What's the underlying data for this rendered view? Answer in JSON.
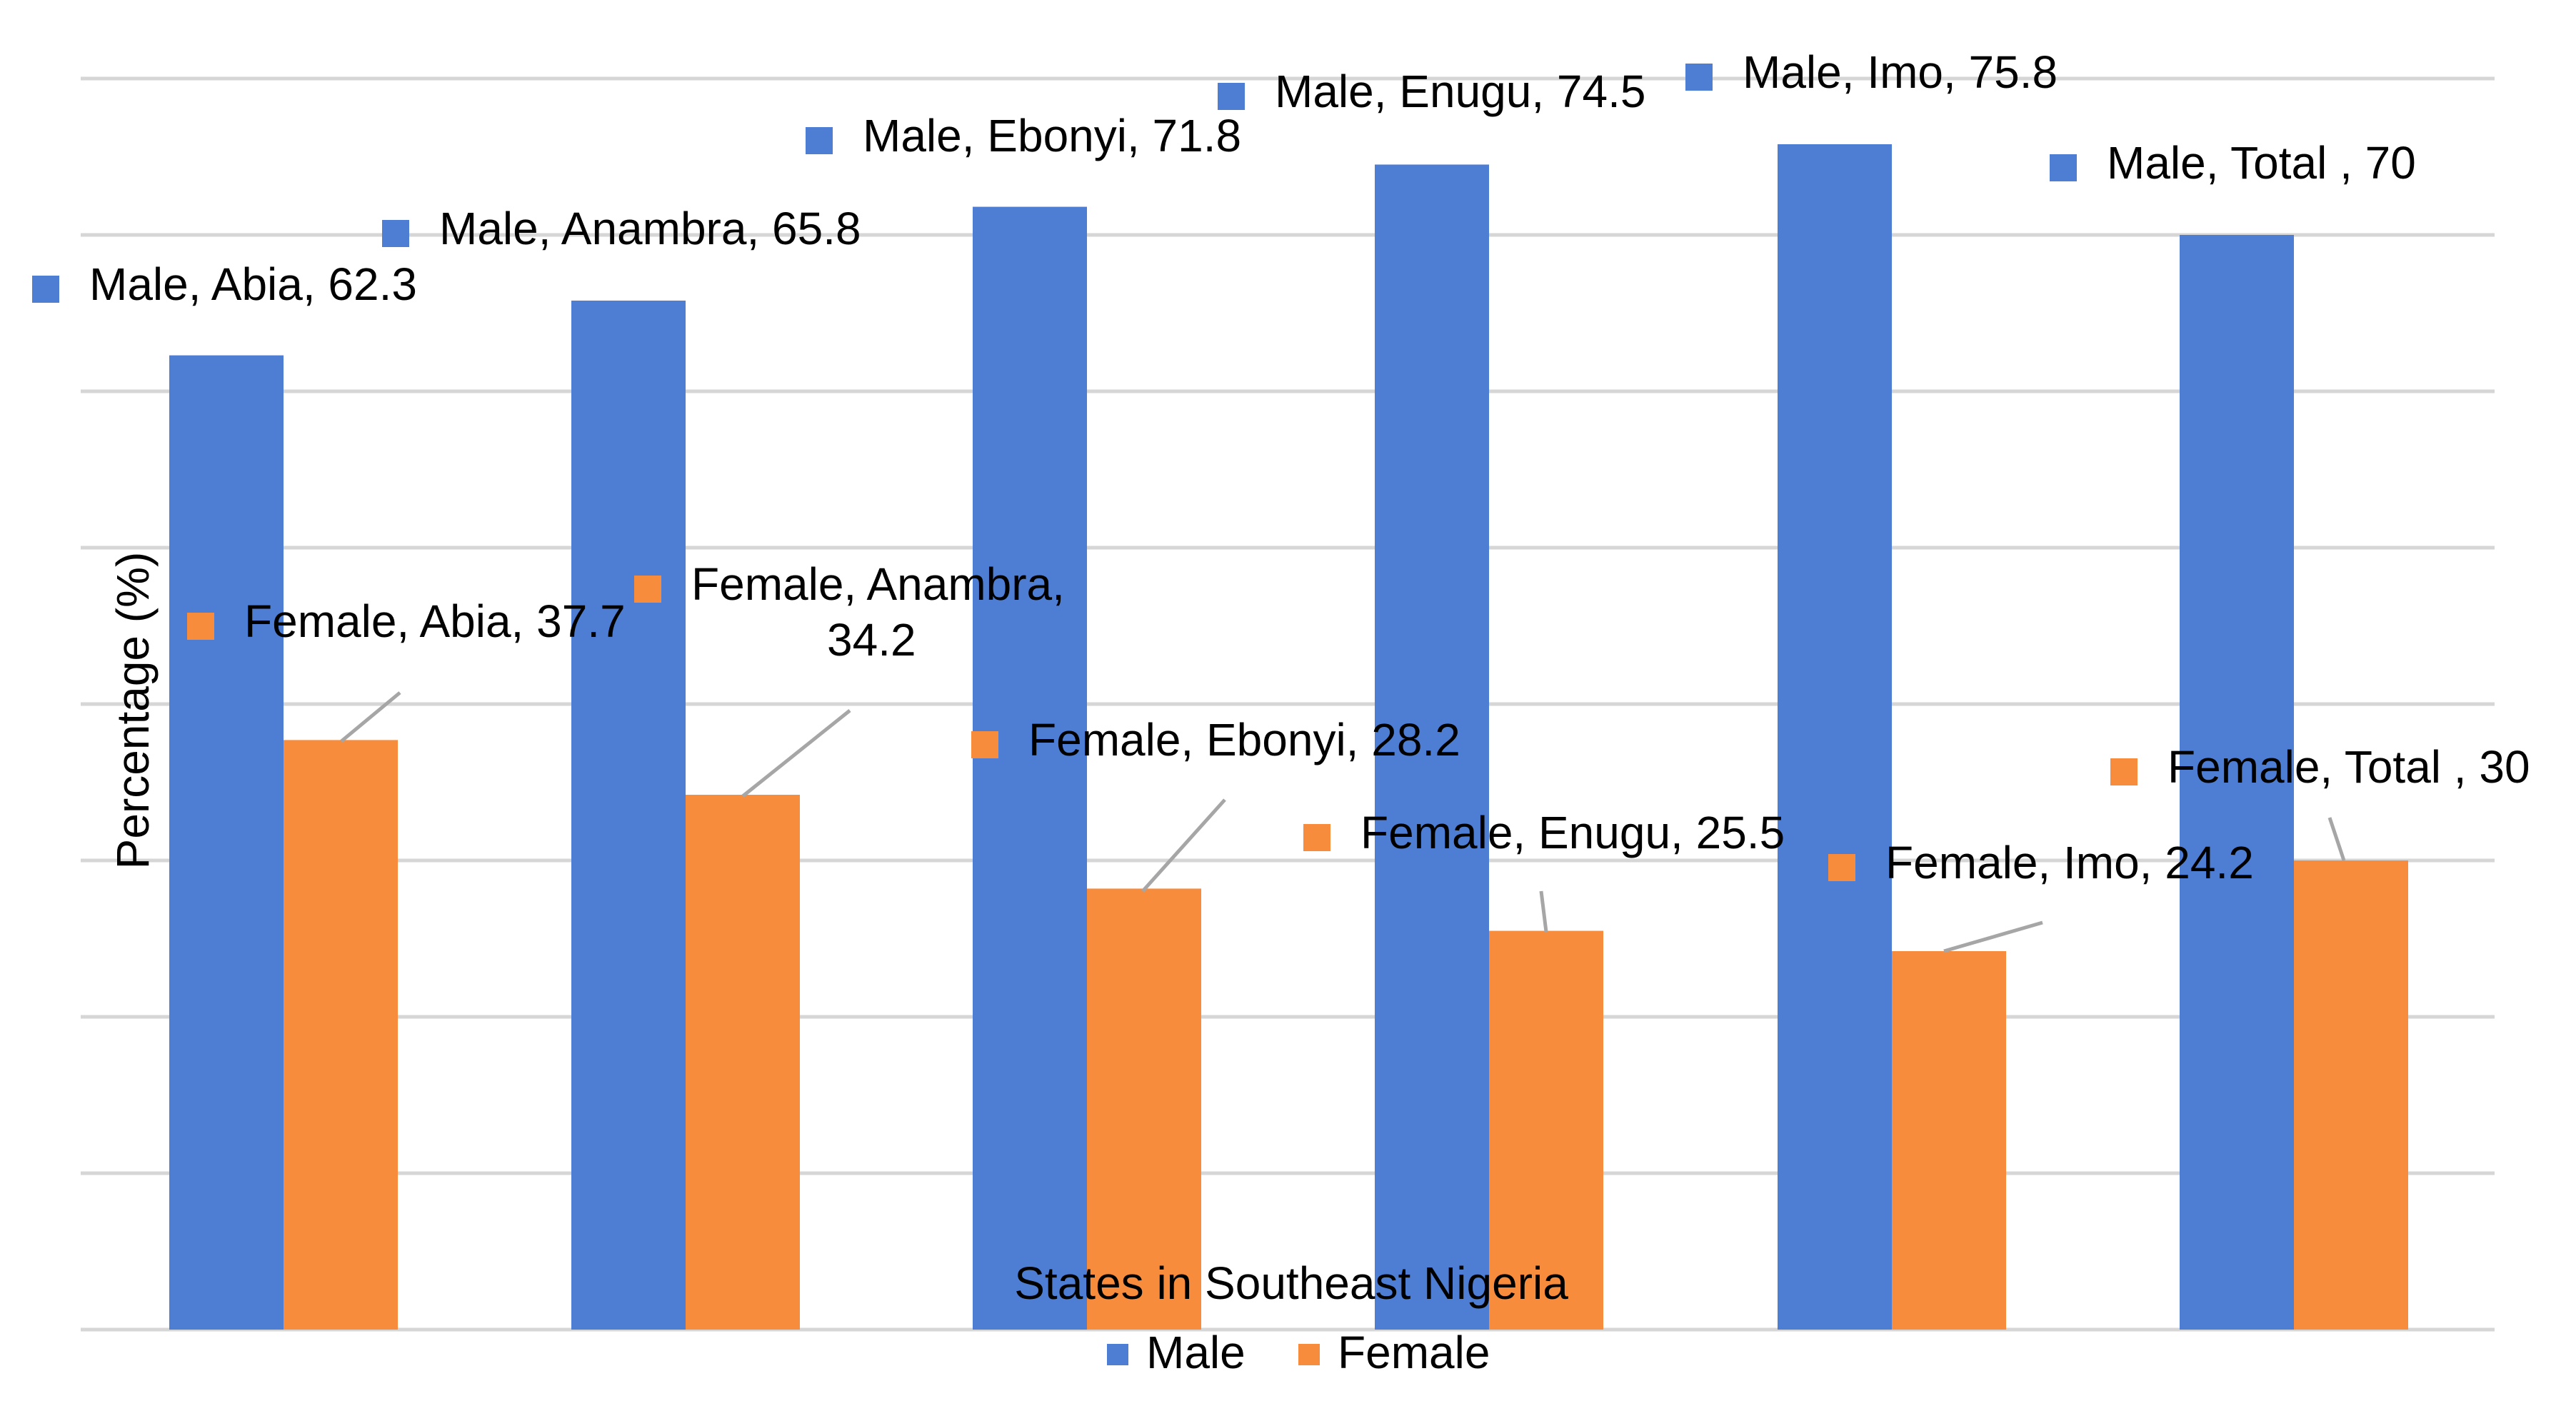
{
  "chart_data": {
    "type": "bar",
    "title": "",
    "xlabel": "States in Southeast Nigeria",
    "ylabel": "Percentage (%)",
    "ylim": [
      0,
      80
    ],
    "grid": true,
    "legend_position": "bottom",
    "categories": [
      "Abia",
      "Anambra",
      "Ebonyi",
      "Enugu",
      "Imo",
      "Total "
    ],
    "series": [
      {
        "name": "Male",
        "color": "#4E7ED4",
        "values": [
          62.3,
          65.8,
          71.8,
          74.5,
          75.8,
          70
        ],
        "labels": [
          "Male, Abia, 62.3",
          "Male, Anambra, 65.8",
          "Male, Ebonyi, 71.8",
          "Male, Enugu, 74.5",
          "Male, Imo, 75.8",
          "Male, Total , 70"
        ]
      },
      {
        "name": "Female",
        "color": "#F68C3C",
        "values": [
          37.7,
          34.2,
          28.2,
          25.5,
          24.2,
          30
        ],
        "labels": [
          "Female, Abia, 37.7",
          "Female, Anambra, 34.2",
          "Female, Ebonyi, 28.2",
          "Female, Enugu, 25.5",
          "Female, Imo, 24.2",
          "Female, Total , 30"
        ]
      }
    ]
  }
}
